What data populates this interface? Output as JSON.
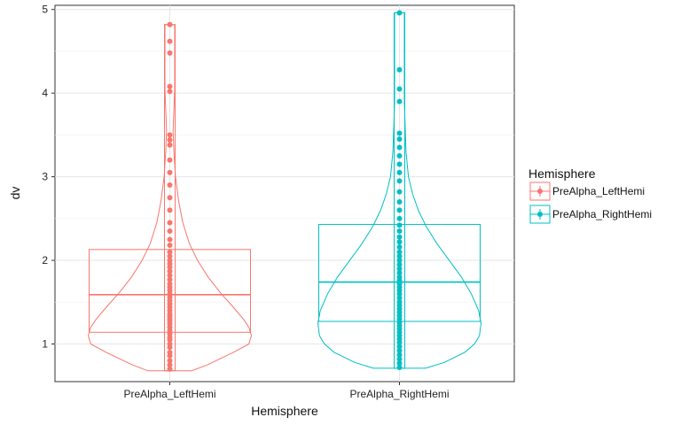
{
  "chart_data": {
    "type": "violin+box+dot",
    "xlabel": "Hemisphere",
    "ylabel": "dv",
    "ylim": [
      0.55,
      5.05
    ],
    "yticks": [
      1,
      2,
      3,
      4,
      5
    ],
    "categories": [
      "PreAlpha_LeftHemi",
      "PreAlpha_RightHemi"
    ],
    "grid": true,
    "legend": {
      "title": "Hemisphere",
      "position": "right",
      "items": [
        "PreAlpha_LeftHemi",
        "PreAlpha_RightHemi"
      ]
    },
    "series": [
      {
        "name": "PreAlpha_LeftHemi",
        "color": "#F8766D",
        "box": {
          "q1": 1.14,
          "median": 1.59,
          "q3": 2.13
        },
        "range": [
          0.68,
          4.82
        ],
        "violin": [
          [
            0.68,
            0.27
          ],
          [
            0.75,
            0.46
          ],
          [
            0.9,
            0.78
          ],
          [
            1.0,
            0.97
          ],
          [
            1.1,
            1.0
          ],
          [
            1.2,
            0.97
          ],
          [
            1.3,
            0.9
          ],
          [
            1.45,
            0.77
          ],
          [
            1.6,
            0.63
          ],
          [
            1.8,
            0.47
          ],
          [
            2.0,
            0.34
          ],
          [
            2.2,
            0.24
          ],
          [
            2.45,
            0.16
          ],
          [
            2.7,
            0.11
          ],
          [
            3.0,
            0.07
          ],
          [
            3.3,
            0.05
          ],
          [
            3.55,
            0.04
          ],
          [
            3.8,
            0.05
          ],
          [
            4.05,
            0.06
          ],
          [
            4.3,
            0.06
          ],
          [
            4.55,
            0.06
          ],
          [
            4.82,
            0.06
          ]
        ],
        "points": [
          0.7,
          0.75,
          0.8,
          0.86,
          0.9,
          0.96,
          1.0,
          1.05,
          1.08,
          1.12,
          1.16,
          1.2,
          1.24,
          1.27,
          1.3,
          1.33,
          1.36,
          1.4,
          1.44,
          1.48,
          1.52,
          1.56,
          1.6,
          1.64,
          1.68,
          1.72,
          1.77,
          1.82,
          1.87,
          1.92,
          1.96,
          2.0,
          2.05,
          2.1,
          2.18,
          2.25,
          2.35,
          2.45,
          2.6,
          2.75,
          2.9,
          3.05,
          3.2,
          3.38,
          3.44,
          3.5,
          4.02,
          4.08,
          4.48,
          4.62,
          4.82
        ]
      },
      {
        "name": "PreAlpha_RightHemi",
        "color": "#00BFC4",
        "box": {
          "q1": 1.27,
          "median": 1.74,
          "q3": 2.43
        },
        "range": [
          0.71,
          4.96
        ],
        "violin": [
          [
            0.71,
            0.32
          ],
          [
            0.78,
            0.55
          ],
          [
            0.9,
            0.8
          ],
          [
            1.0,
            0.92
          ],
          [
            1.1,
            0.98
          ],
          [
            1.25,
            1.0
          ],
          [
            1.4,
            0.97
          ],
          [
            1.6,
            0.88
          ],
          [
            1.8,
            0.76
          ],
          [
            2.0,
            0.61
          ],
          [
            2.2,
            0.46
          ],
          [
            2.4,
            0.33
          ],
          [
            2.6,
            0.23
          ],
          [
            2.8,
            0.16
          ],
          [
            3.0,
            0.11
          ],
          [
            3.3,
            0.08
          ],
          [
            3.6,
            0.07
          ],
          [
            3.9,
            0.06
          ],
          [
            4.2,
            0.06
          ],
          [
            4.5,
            0.06
          ],
          [
            4.75,
            0.06
          ],
          [
            4.96,
            0.06
          ]
        ],
        "points": [
          0.72,
          0.77,
          0.82,
          0.87,
          0.92,
          0.97,
          1.02,
          1.06,
          1.1,
          1.14,
          1.18,
          1.22,
          1.26,
          1.3,
          1.34,
          1.38,
          1.42,
          1.46,
          1.5,
          1.55,
          1.6,
          1.64,
          1.68,
          1.72,
          1.76,
          1.8,
          1.85,
          1.9,
          1.95,
          2.0,
          2.05,
          2.1,
          2.16,
          2.22,
          2.28,
          2.35,
          2.42,
          2.5,
          2.6,
          2.7,
          2.82,
          2.95,
          3.05,
          3.15,
          3.25,
          3.35,
          3.45,
          3.52,
          3.9,
          4.05,
          4.28,
          4.96
        ]
      }
    ]
  }
}
